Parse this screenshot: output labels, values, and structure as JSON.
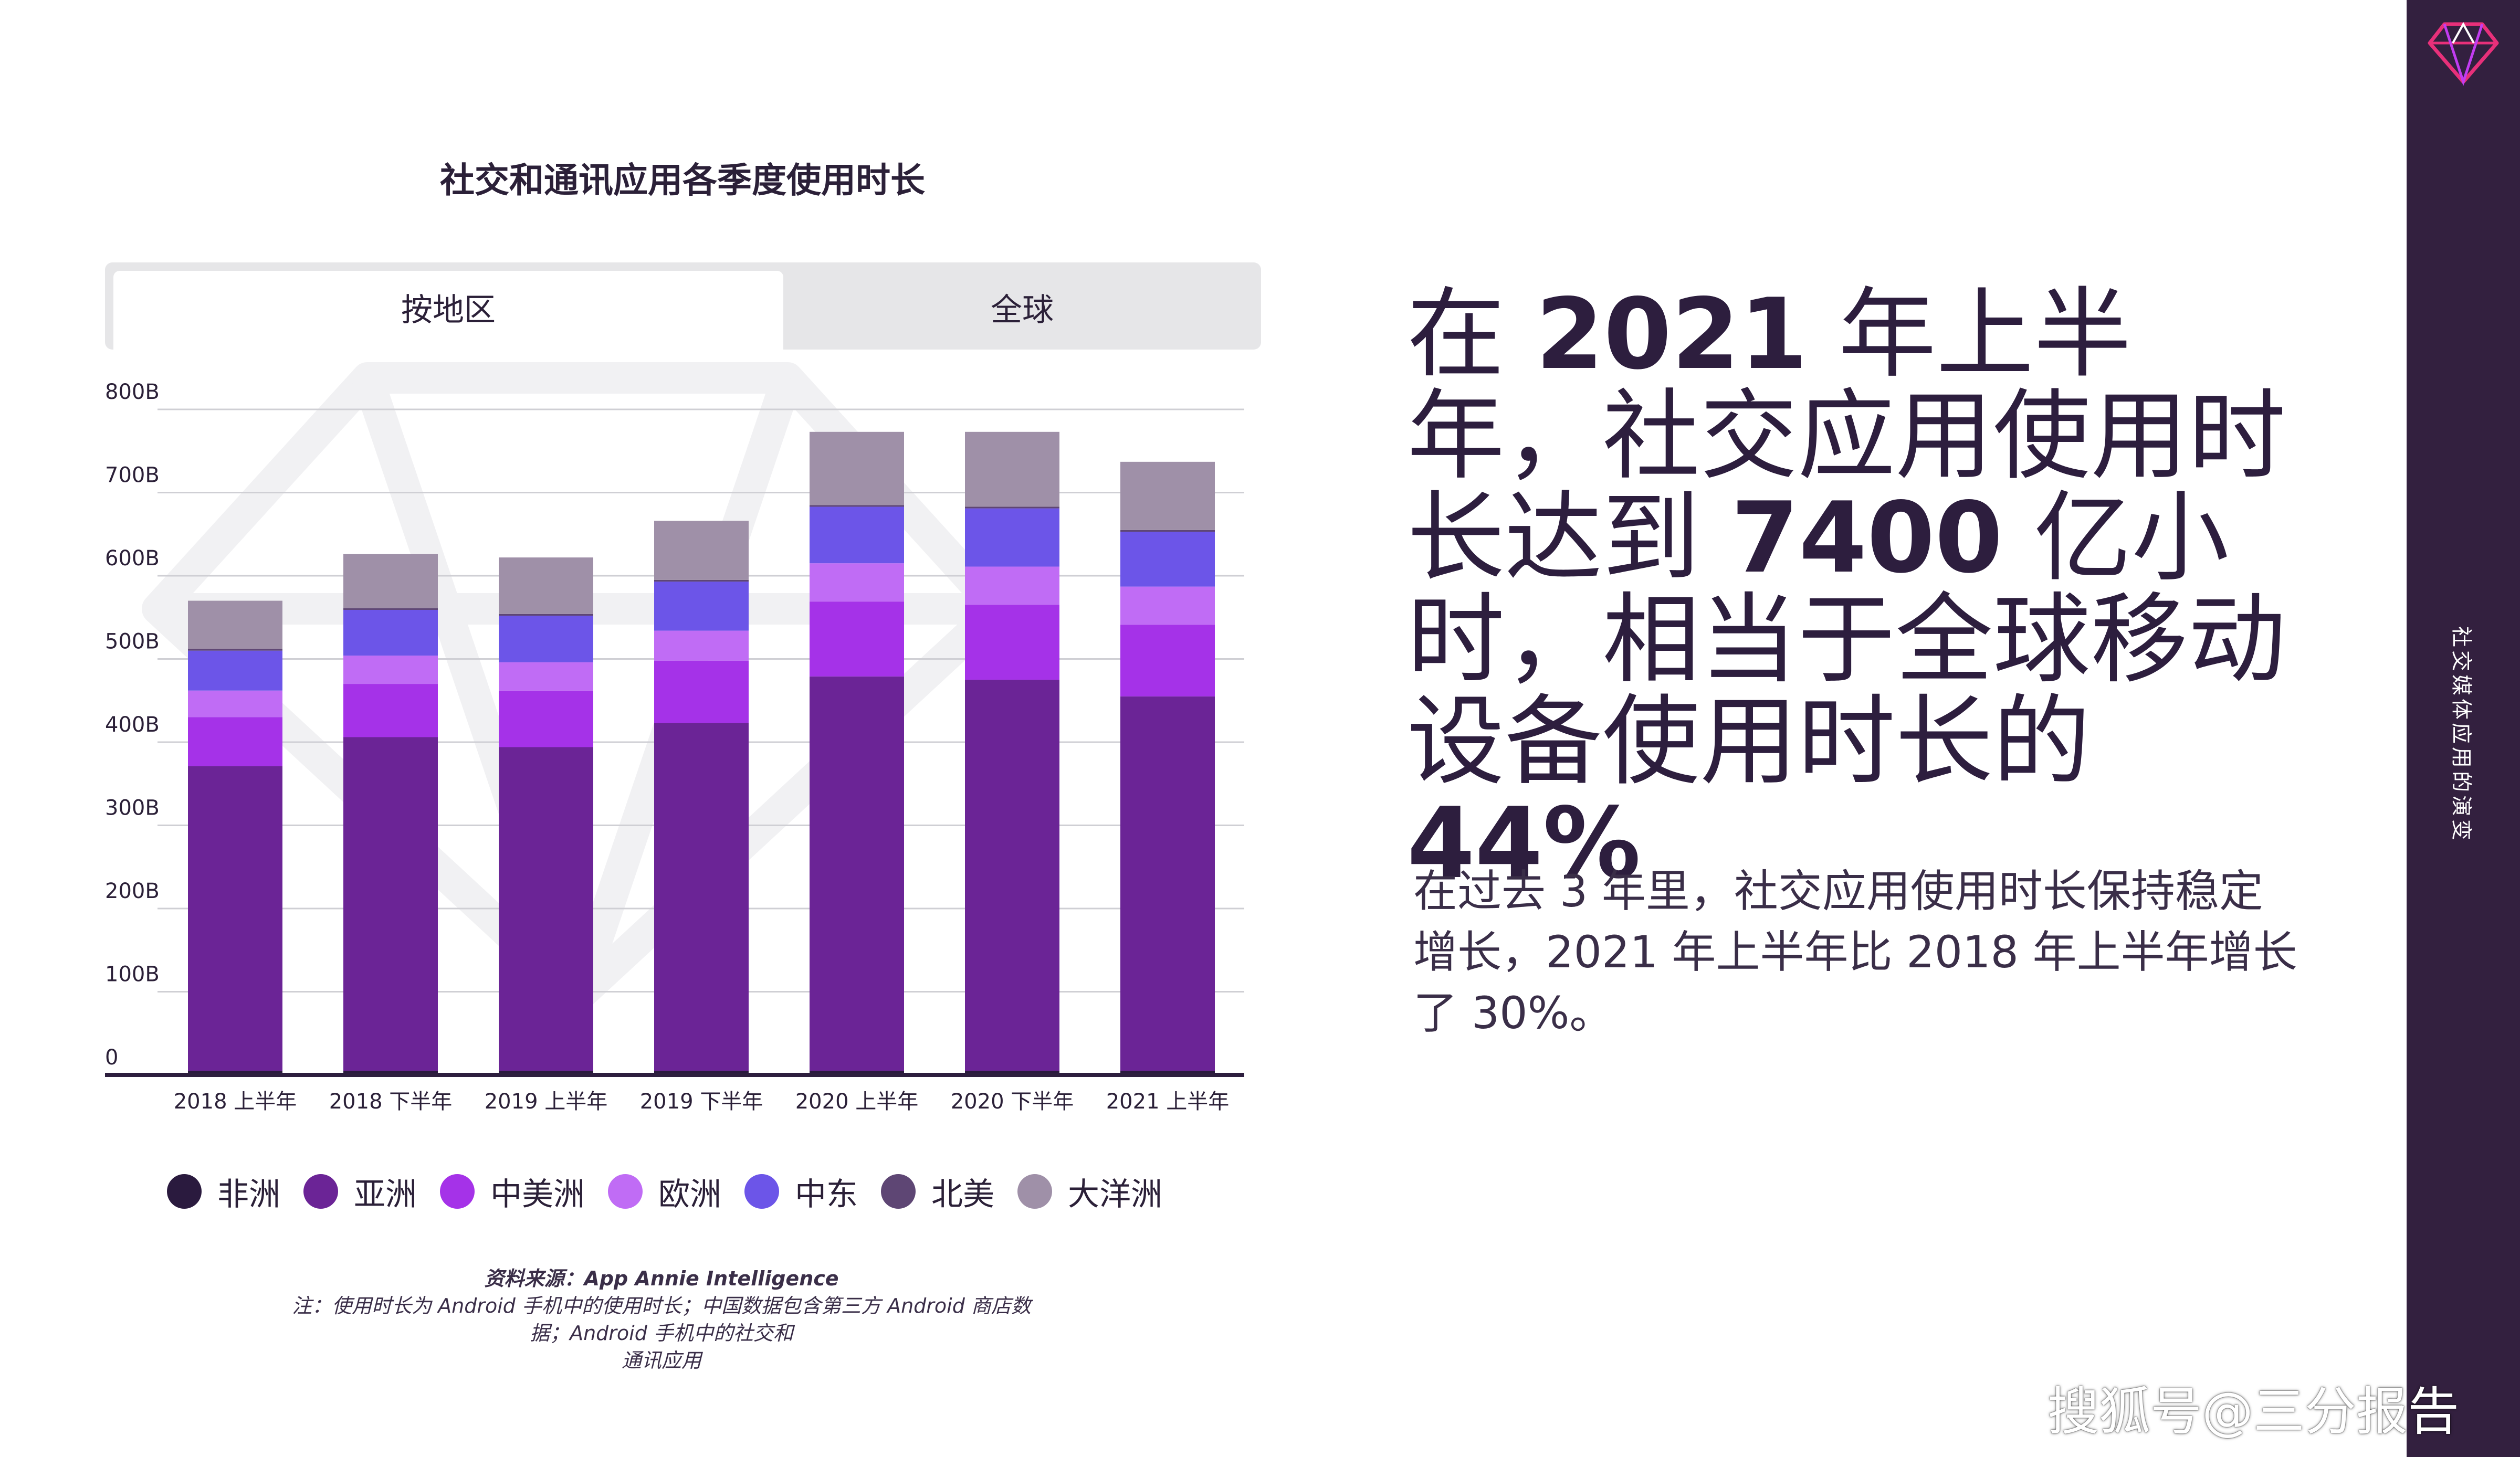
{
  "chart_title": "社交和通讯应用各季度使用时长",
  "tabs": {
    "active": "按地区",
    "inactive": "全球"
  },
  "chart_data": {
    "type": "bar",
    "stacked": true,
    "title": "社交和通讯应用各季度使用时长",
    "xlabel": "",
    "ylabel": "",
    "ylim": [
      0,
      800
    ],
    "y_ticks": [
      0,
      100,
      200,
      300,
      400,
      500,
      600,
      700,
      800
    ],
    "y_tick_labels": [
      "0",
      "100B",
      "200B",
      "300B",
      "400B",
      "500B",
      "600B",
      "700B",
      "800B"
    ],
    "grid": true,
    "categories": [
      "2018 上半年",
      "2018 下半年",
      "2019 上半年",
      "2019 下半年",
      "2020 上半年",
      "2020 下半年",
      "2021 上半年"
    ],
    "series": [
      {
        "name": "非洲",
        "color": "#2a1a3e",
        "values": [
          5,
          5,
          5,
          5,
          5,
          5,
          5
        ]
      },
      {
        "name": "亚洲",
        "color": "#6b2496",
        "values": [
          366,
          401,
          389,
          418,
          474,
          470,
          450
        ]
      },
      {
        "name": "中美洲",
        "color": "#a532e8",
        "values": [
          59,
          64,
          68,
          75,
          90,
          90,
          86
        ]
      },
      {
        "name": "欧洲",
        "color": "#c06cf5",
        "values": [
          32,
          34,
          34,
          36,
          46,
          46,
          46
        ]
      },
      {
        "name": "中东",
        "color": "#6c55e8",
        "values": [
          48,
          55,
          56,
          59,
          68,
          70,
          66
        ]
      },
      {
        "name": "北美",
        "color": "#5e4674",
        "values": [
          2,
          2,
          2,
          2,
          2,
          2,
          2
        ]
      },
      {
        "name": "大洋洲",
        "color": "#9f90a8",
        "values": [
          58,
          65,
          68,
          71,
          88,
          90,
          82
        ]
      }
    ],
    "legend_position": "bottom"
  },
  "source": {
    "line1": "资料来源：App Annie Intelligence",
    "line2": "注：使用时长为 Android 手机中的使用时长；中国数据包含第三方 Android 商店数",
    "line3": "据；Android 手机中的社交和",
    "line4": "通讯应用"
  },
  "headline": {
    "p1": "在 ",
    "b1": "2021",
    "p2": " 年上半年，社交应用使用时长达到 ",
    "b2": "7400",
    "p3": " 亿小时，相当于全球移动设备使用时长的 ",
    "b3": "44%"
  },
  "body_text": "在过去 3 年里，社交应用使用时长保持稳定增长，2021 年上半年比 2018 年上半年增长了 30%。",
  "sidebar": {
    "section_title": "社交媒体应用的演变",
    "logo_icon": "diamond-logo-icon"
  },
  "watermark": "搜狐号@三分报告",
  "colors": {
    "sidebar_bg": "#33203f",
    "text_dark": "#2d1e3e",
    "gridline": "#cfcfd4"
  }
}
